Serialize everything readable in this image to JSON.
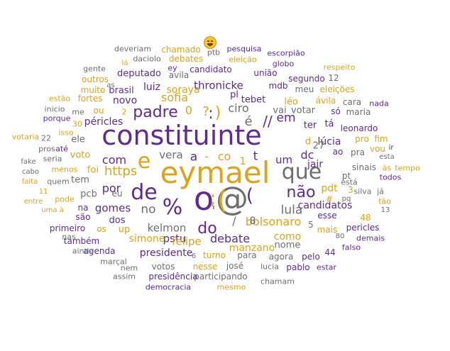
{
  "colors": {
    "purple": "#5e2b8f",
    "gold": "#d9a51f",
    "gray": "#6e6e6e"
  },
  "emoji": "grinning-squinting-face",
  "words": [
    "constituinte",
    "eymael",
    "o",
    "de",
    "e",
    "que",
    "@",
    "(",
    ";",
    "%",
    "(",
    "'",
    "não",
    "padre",
    "do",
    "https",
    "é",
    "//",
    "em",
    "ciro",
    "sofia",
    "?",
    ")",
    ":",
    "0",
    "vera",
    "a",
    "co",
    "t",
    "com",
    "por",
    "gomes",
    "no",
    "lula",
    "kelmon",
    "pstu",
    "dc",
    "um",
    "jair",
    "bolsonaro",
    "/",
    "debate",
    "felipe",
    "simone",
    "presidente",
    "manzano",
    "como",
    "lúcia",
    "candidatos",
    "pdt",
    "mais",
    "soraya",
    "luiz",
    "brasil",
    "novo",
    "péricles",
    "tem",
    "ele",
    "voto",
    "pcb",
    "up",
    "os",
    "dos",
    "na",
    "são",
    "primeiro",
    "também",
    "agenda",
    "nem",
    "votos",
    "nesse",
    "josé",
    "lucia",
    "agora",
    "pelo",
    "pablo",
    "estar",
    "presidência",
    "participando",
    "democracia",
    "mesmo",
    "chamam",
    "marçal",
    "assim",
    "ainda",
    "nas",
    "turno",
    "para",
    "nome",
    "esse",
    "pericles",
    "demais",
    "falso",
    "44",
    "5",
    "27",
    "ao",
    "pra",
    "sinais",
    "pt",
    "está",
    "já",
    "silva",
    "tão",
    "13",
    "48",
    "#",
    "3",
    "d",
    "ter",
    "tá",
    "leonardo",
    "votar",
    "só",
    "ir",
    "vou",
    "pro",
    "fim",
    "maria",
    "cara",
    "nada",
    "esta",
    "às",
    "tempo",
    "todos",
    "eleições",
    "respeito",
    "globo",
    "união",
    "segundo",
    "12",
    "meu",
    "mdb",
    "léo",
    "ávila",
    "tebet",
    "thronicke",
    "pl",
    "vai",
    "escorpião",
    "eleição",
    "pesquisa",
    "ptb",
    "chamado",
    "debates",
    "daciolo",
    "ey",
    "deveriam",
    "candidato",
    "deputado",
    "avila",
    "gente",
    "lá",
    "as",
    "outros",
    "muito",
    "fortes",
    "estão",
    "inicio",
    "porque",
    "me",
    "2",
    "ou",
    "30",
    "isso",
    "22",
    "pros",
    "até",
    "votaria",
    "fake",
    "seria",
    "menos",
    "cabo",
    "falta",
    "quem",
    "11",
    "entre",
    "pode",
    "uma à",
    "eu",
    "foi",
    "6",
    "80",
    "pq",
    "1",
    "8",
    "-"
  ]
}
